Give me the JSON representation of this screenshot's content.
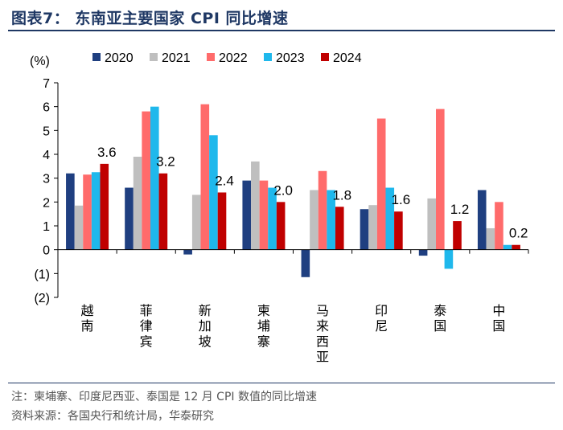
{
  "header": {
    "title": "图表7：  东南亚主要国家 CPI 同比增速"
  },
  "notes": {
    "note": "注：柬埔寨、印度尼西亚、泰国是 12 月 CPI 数值的同比增速",
    "source": "资料来源：各国央行和统计局，华泰研究"
  },
  "colors": {
    "2020": "#1f3f80",
    "2021": "#bfbfbf",
    "2022": "#ff6b6b",
    "2023": "#1fb8ec",
    "2024": "#c00000"
  },
  "chart_data": {
    "type": "bar",
    "title": "东南亚主要国家 CPI 同比增速",
    "ylabel": "(%)",
    "ylim": [
      -2,
      7
    ],
    "yticks": [
      "7",
      "6",
      "5",
      "4",
      "3",
      "2",
      "1",
      "0",
      "(1)",
      "(2)"
    ],
    "ytick_values": [
      7,
      6,
      5,
      4,
      3,
      2,
      1,
      0,
      -1,
      -2
    ],
    "categories": [
      "越南",
      "菲律宾",
      "新加坡",
      "柬埔寨",
      "马来西亚",
      "印尼",
      "泰国",
      "中国"
    ],
    "legend": [
      "2020",
      "2021",
      "2022",
      "2023",
      "2024"
    ],
    "series": [
      {
        "name": "2020",
        "values": [
          3.2,
          2.6,
          -0.2,
          2.9,
          -1.15,
          1.7,
          -0.25,
          2.5
        ]
      },
      {
        "name": "2021",
        "values": [
          1.85,
          3.9,
          2.3,
          3.7,
          2.5,
          1.87,
          2.15,
          0.9
        ]
      },
      {
        "name": "2022",
        "values": [
          3.15,
          5.8,
          6.1,
          2.9,
          3.3,
          5.5,
          5.9,
          2.0
        ]
      },
      {
        "name": "2023",
        "values": [
          3.25,
          6.0,
          4.8,
          2.6,
          2.5,
          2.6,
          -0.8,
          0.2
        ]
      },
      {
        "name": "2024",
        "values": [
          3.6,
          3.2,
          2.4,
          2.0,
          1.8,
          1.6,
          1.2,
          0.2
        ]
      }
    ],
    "data_labels": [
      "3.6",
      "3.2",
      "2.4",
      "2.0",
      "1.8",
      "1.6",
      "1.2",
      "0.2"
    ]
  }
}
